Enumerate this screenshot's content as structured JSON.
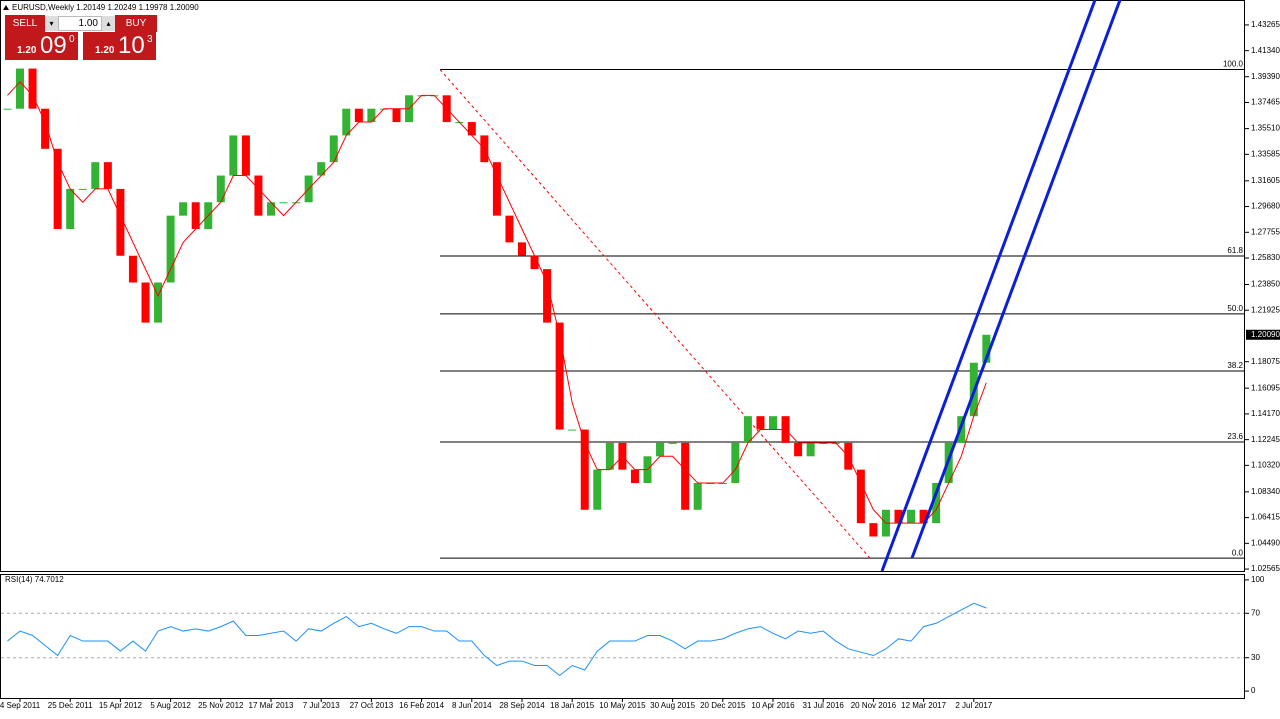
{
  "trade_panel": {
    "sell_label": "SELL",
    "buy_label": "BUY",
    "lot": "1.00",
    "sell_price": {
      "big": "1.20",
      "pips": "09",
      "frac": "0"
    },
    "buy_price": {
      "big": "1.20",
      "pips": "10",
      "frac": "3"
    }
  },
  "chart_data": [
    {
      "type": "candlestick",
      "title": "EURUSD,Weekly  1.20149 1.20249 1.19978 1.20090",
      "up_color": "#33b233",
      "down_color": "#ff0000",
      "values": [
        1.37,
        1.4,
        1.37,
        1.34,
        1.28,
        1.31,
        1.31,
        1.33,
        1.31,
        1.26,
        1.24,
        1.21,
        1.24,
        1.29,
        1.3,
        1.28,
        1.3,
        1.32,
        1.35,
        1.32,
        1.29,
        1.3,
        1.3,
        1.3,
        1.32,
        1.33,
        1.35,
        1.37,
        1.36,
        1.37,
        1.37,
        1.36,
        1.38,
        1.38,
        1.38,
        1.36,
        1.36,
        1.35,
        1.33,
        1.29,
        1.27,
        1.26,
        1.25,
        1.21,
        1.13,
        1.13,
        1.07,
        1.1,
        1.12,
        1.1,
        1.09,
        1.11,
        1.12,
        1.12,
        1.07,
        1.09,
        1.09,
        1.09,
        1.12,
        1.14,
        1.13,
        1.14,
        1.12,
        1.11,
        1.12,
        1.12,
        1.12,
        1.1,
        1.06,
        1.05,
        1.07,
        1.06,
        1.07,
        1.06,
        1.09,
        1.12,
        1.14,
        1.18,
        1.2009
      ],
      "ma": {
        "color": "#ff0000",
        "values": [
          1.38,
          1.39,
          1.38,
          1.36,
          1.33,
          1.31,
          1.3,
          1.31,
          1.31,
          1.29,
          1.27,
          1.25,
          1.23,
          1.25,
          1.27,
          1.28,
          1.29,
          1.3,
          1.32,
          1.32,
          1.31,
          1.3,
          1.29,
          1.3,
          1.31,
          1.32,
          1.33,
          1.35,
          1.36,
          1.36,
          1.37,
          1.37,
          1.37,
          1.38,
          1.38,
          1.37,
          1.36,
          1.35,
          1.34,
          1.32,
          1.3,
          1.28,
          1.26,
          1.24,
          1.2,
          1.15,
          1.12,
          1.1,
          1.1,
          1.11,
          1.1,
          1.1,
          1.11,
          1.11,
          1.1,
          1.09,
          1.09,
          1.09,
          1.1,
          1.12,
          1.13,
          1.13,
          1.13,
          1.12,
          1.12,
          1.12,
          1.12,
          1.11,
          1.09,
          1.07,
          1.06,
          1.06,
          1.06,
          1.06,
          1.07,
          1.09,
          1.11,
          1.14,
          1.165
        ]
      },
      "ylim": [
        1.0242,
        1.4513
      ],
      "yticks": [
        1.43265,
        {
          "value": 1.4134,
          "label": "1.41340"
        },
        {
          "value": 1.3939,
          "label": "1.39390"
        },
        1.37465,
        {
          "value": 1.3551,
          "label": "1.35510"
        },
        1.33585,
        1.31605,
        {
          "value": 1.2968,
          "label": "1.29680"
        },
        1.27755,
        {
          "value": 1.2583,
          "label": "1.25830"
        },
        {
          "value": 1.2385,
          "label": "1.23850"
        },
        1.21925,
        1.18075,
        1.16095,
        {
          "value": 1.1417,
          "label": "1.14170"
        },
        1.12245,
        {
          "value": 1.1032,
          "label": "1.10320"
        },
        {
          "value": 1.0834,
          "label": "1.08340"
        },
        1.06415,
        {
          "value": 1.0449,
          "label": "1.04490"
        },
        1.02565
      ],
      "current_price": {
        "value": 1.2009,
        "label": "1.20090"
      },
      "fib_levels": [
        {
          "level": {
            "value": 100,
            "label": "100.0"
          },
          "price": 1.3993
        },
        {
          "level": 61.8,
          "price": 1.2598
        },
        {
          "level": {
            "value": 50,
            "label": "50.0"
          },
          "price": 1.2165
        },
        {
          "level": 38.2,
          "price": 1.1738
        },
        {
          "level": 23.6,
          "price": 1.1207
        },
        {
          "level": {
            "value": 0,
            "label": "0.0"
          },
          "price": 1.0338
        }
      ]
    },
    {
      "type": "line",
      "title": "RSI(14) 74.7012",
      "color": "#1e90ff",
      "values": [
        45,
        54,
        50,
        41,
        32,
        50,
        45,
        45,
        45,
        36,
        45,
        36,
        54,
        58,
        54,
        56,
        54,
        58,
        63,
        50,
        50,
        52,
        54,
        45,
        56,
        54,
        61,
        67,
        58,
        61,
        56,
        52,
        58,
        58,
        54,
        54,
        45,
        45,
        32,
        23,
        27,
        27,
        23,
        23,
        14,
        23,
        19,
        36,
        45,
        45,
        45,
        50,
        50,
        45,
        38,
        45,
        45,
        47,
        52,
        56,
        58,
        52,
        47,
        54,
        52,
        54,
        45,
        38,
        35,
        32,
        38,
        47,
        45,
        58,
        61,
        67,
        73,
        79,
        74.7012
      ],
      "ylim": [
        -6.2,
        104.4
      ],
      "yticks": [
        100,
        70,
        30,
        0
      ],
      "levels": [
        70,
        30
      ],
      "xticks": [
        {
          "value": 1,
          "label": "4 Sep 2011"
        },
        {
          "value": 5,
          "label": "25 Dec 2011"
        },
        {
          "value": 9,
          "label": "15 Apr 2012"
        },
        {
          "value": 13,
          "label": "5 Aug 2012"
        },
        {
          "value": 17,
          "label": "25 Nov 2012"
        },
        {
          "value": 21,
          "label": "17 Mar 2013"
        },
        {
          "value": 25,
          "label": "7 Jul 2013"
        },
        {
          "value": 29,
          "label": "27 Oct 2013"
        },
        {
          "value": 33,
          "label": "16 Feb 2014"
        },
        {
          "value": 37,
          "label": "8 Jun 2014"
        },
        {
          "value": 41,
          "label": "28 Sep 2014"
        },
        {
          "value": 45,
          "label": "18 Jan 2015"
        },
        {
          "value": 49,
          "label": "10 May 2015"
        },
        {
          "value": 53,
          "label": "30 Aug 2015"
        },
        {
          "value": 57,
          "label": "20 Dec 2015"
        },
        {
          "value": 61,
          "label": "10 Apr 2016"
        },
        {
          "value": 65,
          "label": "31 Jul 2016"
        },
        {
          "value": 69,
          "label": "20 Nov 2016"
        },
        {
          "value": 73,
          "label": "12 Mar 2017"
        },
        {
          "value": 77,
          "label": "2 Jul 2017"
        }
      ]
    }
  ]
}
